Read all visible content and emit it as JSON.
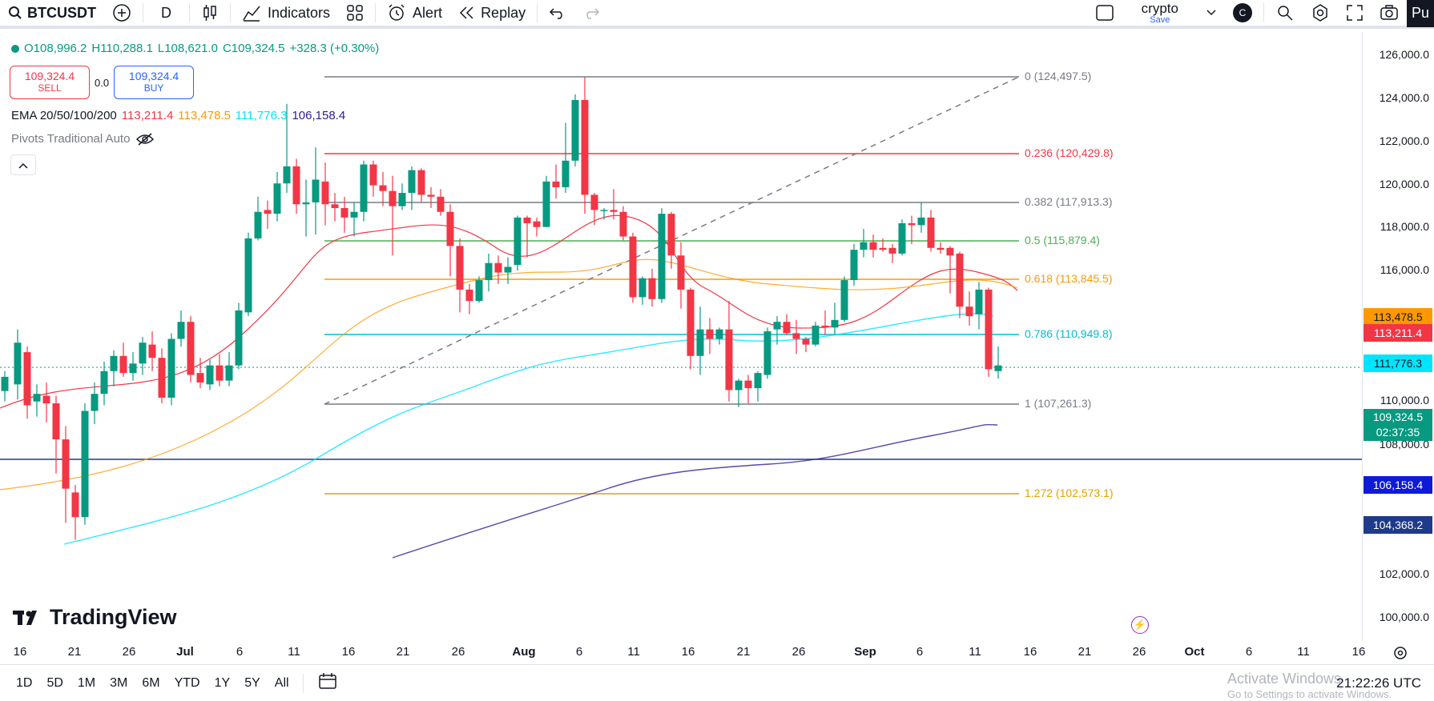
{
  "toolbar": {
    "symbol": "BTCUSDT",
    "interval": "D",
    "indicators_label": "Indicators",
    "alert_label": "Alert",
    "replay_label": "Replay",
    "layout_name": "crypto",
    "layout_status": "Save",
    "avatar_letter": "C",
    "publish_label": "Pu"
  },
  "legend": {
    "ohlc": {
      "open": "O108,996.2",
      "high": "H110,288.1",
      "low": "L108,621.0",
      "close": "C109,324.5",
      "change": "+328.3 (+0.30%)"
    },
    "sell_price": "109,324.4",
    "sell_label": "SELL",
    "spread": "0.0",
    "buy_price": "109,324.4",
    "buy_label": "BUY",
    "ema_title": "EMA 20/50/100/200",
    "ema_values": [
      "113,211.4",
      "113,478.5",
      "111,776.3",
      "106,158.4"
    ],
    "pivots_label": "Pivots Traditional Auto"
  },
  "colors": {
    "up": "#089981",
    "down": "#f23645",
    "ema20": "#f23645",
    "ema50": "#ff9800",
    "ema100": "#00e5ff",
    "ema200": "#311b92"
  },
  "price_axis": {
    "ticks": [
      "126,000.0",
      "124,000.0",
      "122,000.0",
      "120,000.0",
      "118,000.0",
      "116,000.0",
      "110,000.0",
      "108,000.0",
      "102,000.0",
      "100,000.0"
    ],
    "tags": {
      "ema50": "113,478.5",
      "ema20": "113,211.4",
      "ema100": "111,776.3",
      "last_price": "109,324.5",
      "countdown": "02:37:35",
      "ema200": "106,158.4",
      "hline": "104,368.2"
    }
  },
  "fib_levels": [
    {
      "label": "0 (124,497.5)",
      "color": "#787b86"
    },
    {
      "label": "0.236 (120,429.8)",
      "color": "#f23645"
    },
    {
      "label": "0.382 (117,913.3)",
      "color": "#787b86"
    },
    {
      "label": "0.5 (115,879.4)",
      "color": "#4caf50"
    },
    {
      "label": "0.618 (113,845.5)",
      "color": "#ff9800"
    },
    {
      "label": "0.786 (110,949.8)",
      "color": "#00bcd4"
    },
    {
      "label": "1 (107,261.3)",
      "color": "#787b86"
    },
    {
      "label": "1.272 (102,573.1)",
      "color": "#e5a100"
    }
  ],
  "time_axis": [
    "16",
    "21",
    "26",
    "Jul",
    "6",
    "11",
    "16",
    "21",
    "26",
    "Aug",
    "6",
    "11",
    "16",
    "21",
    "26",
    "Sep",
    "6",
    "11",
    "16",
    "21",
    "26",
    "Oct",
    "6",
    "11",
    "16"
  ],
  "bottom": {
    "ranges": [
      "1D",
      "5D",
      "1M",
      "3M",
      "6M",
      "YTD",
      "1Y",
      "5Y",
      "All"
    ],
    "clock": "21:22:26 UTC",
    "watermark_title": "Activate Windows",
    "watermark_sub": "Go to Settings to activate Windows."
  },
  "logo_text": "TradingView"
}
